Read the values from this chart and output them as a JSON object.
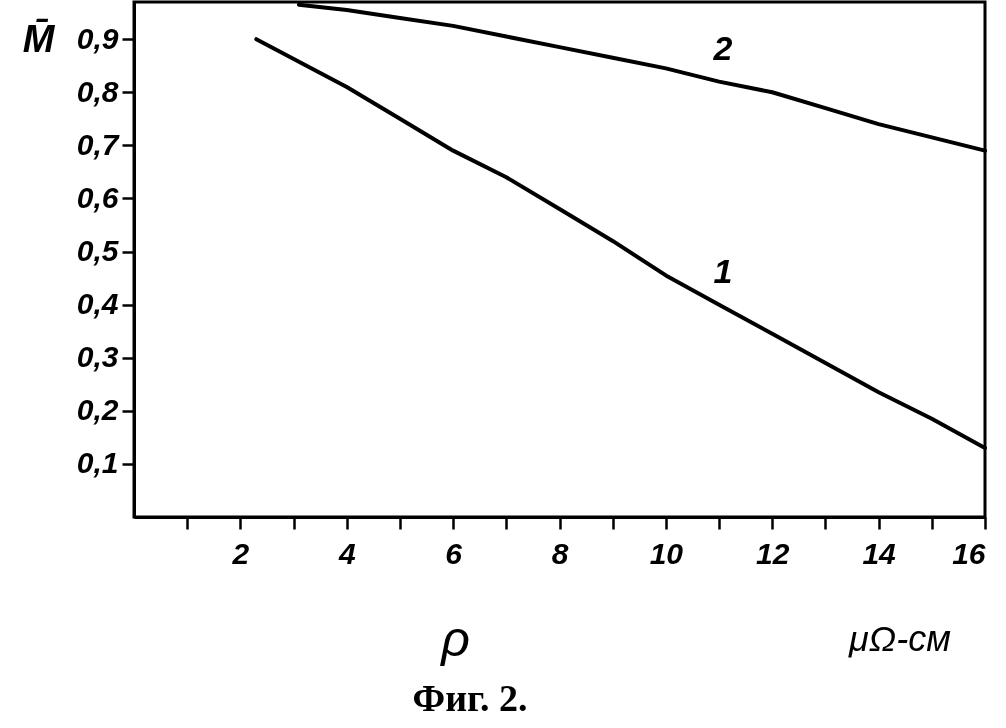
{
  "chart_data": {
    "type": "line",
    "ylabel": "M̄",
    "xlabel": "ρ",
    "annotations": [
      "μΩ-см",
      "Фиг. 2."
    ],
    "xlim": [
      0,
      16
    ],
    "ylim": [
      0,
      0.97
    ],
    "xticks": [
      {
        "value": 1,
        "label": null
      },
      2,
      {
        "value": 3,
        "label": null
      },
      4,
      {
        "value": 5,
        "label": null
      },
      6,
      {
        "value": 7,
        "label": null
      },
      8,
      {
        "value": 9,
        "label": null
      },
      10,
      {
        "value": 11,
        "label": null
      },
      12,
      {
        "value": 13,
        "label": null
      },
      14,
      {
        "value": 15,
        "label": null
      },
      16
    ],
    "yticks": [
      {
        "value": 0.1,
        "label": "0,1"
      },
      {
        "value": 0.2,
        "label": "0,2"
      },
      {
        "value": 0.3,
        "label": "0,3"
      },
      {
        "value": 0.4,
        "label": "0,4"
      },
      {
        "value": 0.5,
        "label": "0,5"
      },
      {
        "value": 0.6,
        "label": "0,6"
      },
      {
        "value": 0.7,
        "label": "0,7"
      },
      {
        "value": 0.8,
        "label": "0,8"
      },
      {
        "value": 0.9,
        "label": "0,9"
      }
    ],
    "grid": false,
    "line_style": "solid",
    "series": [
      {
        "name": "1",
        "color": "#000000",
        "x": [
          2.3,
          4,
          5,
          6,
          7,
          8,
          9,
          10,
          11,
          12,
          13,
          14,
          15,
          16
        ],
        "values": [
          0.9,
          0.81,
          0.75,
          0.69,
          0.64,
          0.58,
          0.52,
          0.455,
          0.4,
          0.345,
          0.29,
          0.235,
          0.185,
          0.13
        ]
      },
      {
        "name": "2",
        "color": "#000000",
        "x": [
          3.1,
          4,
          5,
          6,
          7,
          8,
          9,
          10,
          11,
          12,
          13,
          14,
          15,
          16
        ],
        "values": [
          0.965,
          0.955,
          0.94,
          0.925,
          0.905,
          0.885,
          0.865,
          0.845,
          0.82,
          0.8,
          0.77,
          0.74,
          0.715,
          0.69
        ]
      }
    ]
  }
}
